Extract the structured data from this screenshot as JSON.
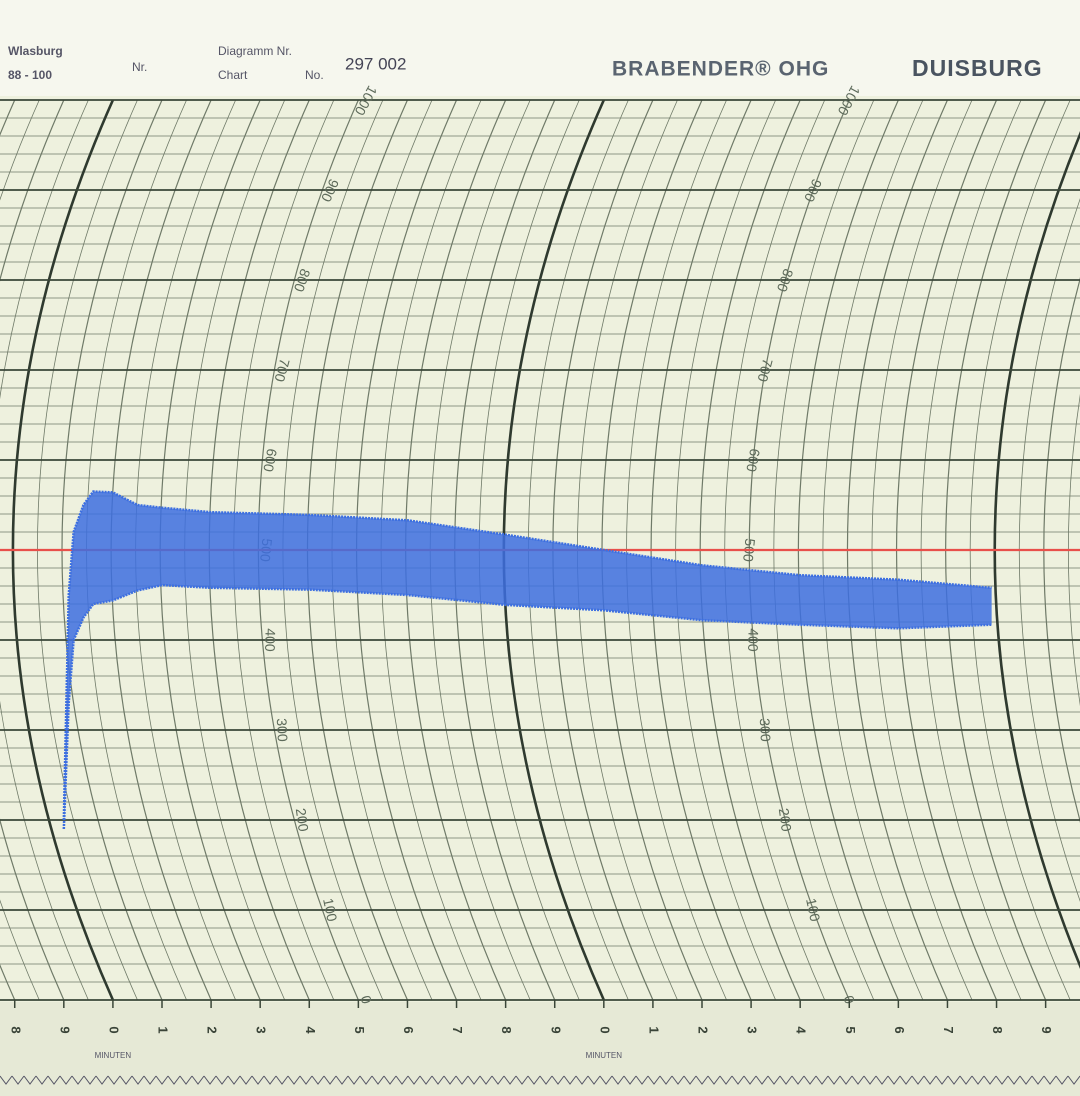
{
  "header": {
    "left_top": "Wlasburg",
    "left_bottom": "88 - 100",
    "nr": "Nr.",
    "diagram_label": "Diagramm Nr.",
    "chart_label": "Chart",
    "no_label": "No.",
    "chart_number": "297 002",
    "brand": "BRABENDER® OHG",
    "city": "DUISBURG"
  },
  "chart_data": {
    "type": "band",
    "x": [
      -1.0,
      -0.9,
      -0.8,
      -0.6,
      -0.4,
      0,
      0.5,
      1,
      2,
      4,
      6,
      8,
      10,
      12,
      14,
      16,
      17.9
    ],
    "series": [
      {
        "color": "#3d6fe0",
        "values": [
          200,
          450,
          520,
          550,
          565,
          564,
          550,
          547,
          542,
          539,
          533,
          517,
          500,
          483,
          472,
          467,
          458
        ]
      },
      {
        "color": "#3d6fe0",
        "values": [
          190,
          330,
          400,
          425,
          440,
          444,
          455,
          461,
          458,
          456,
          450,
          439,
          433,
          422,
          417,
          413,
          417
        ]
      }
    ],
    "reference_line": {
      "value": 500,
      "color": "#e8504a"
    },
    "xlim": [
      -2.3,
      19.7
    ],
    "xticks": [
      {
        "value": -2,
        "label": "8"
      },
      {
        "value": -1,
        "label": "9"
      },
      {
        "value": 0,
        "label": "0"
      },
      {
        "value": 1,
        "label": "1"
      },
      {
        "value": 2,
        "label": "2"
      },
      {
        "value": 3,
        "label": "3"
      },
      {
        "value": 4,
        "label": "4"
      },
      {
        "value": 5,
        "label": "5"
      },
      {
        "value": 6,
        "label": "6"
      },
      {
        "value": 7,
        "label": "7"
      },
      {
        "value": 8,
        "label": "8"
      },
      {
        "value": 9,
        "label": "9"
      },
      {
        "value": 10,
        "label": "0"
      },
      {
        "value": 11,
        "label": "1"
      },
      {
        "value": 12,
        "label": "2"
      },
      {
        "value": 13,
        "label": "3"
      },
      {
        "value": 14,
        "label": "4"
      },
      {
        "value": 15,
        "label": "5"
      },
      {
        "value": 16,
        "label": "6"
      },
      {
        "value": 17,
        "label": "7"
      },
      {
        "value": 18,
        "label": "8"
      },
      {
        "value": 19,
        "label": "9"
      }
    ],
    "x_label": "MINUTEN",
    "ylim": [
      0,
      1000
    ],
    "yticks": [
      0,
      100,
      200,
      300,
      400,
      500,
      600,
      700,
      800,
      900,
      1000
    ]
  }
}
